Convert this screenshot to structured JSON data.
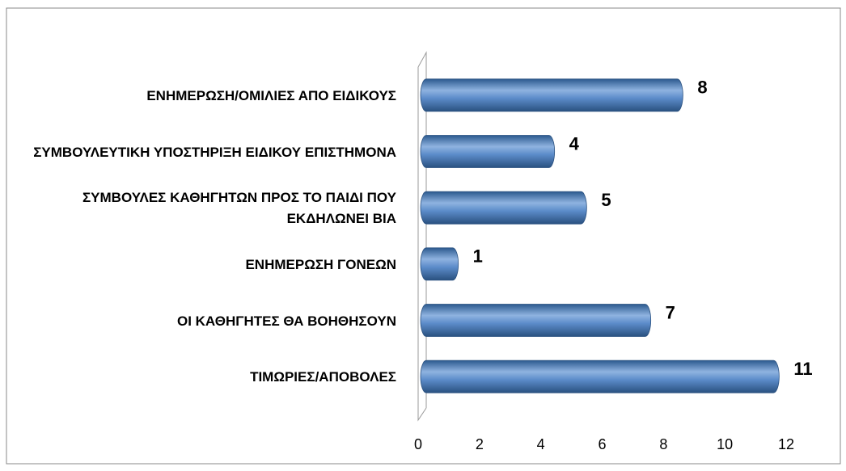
{
  "chart_data": {
    "type": "bar",
    "orientation": "horizontal",
    "categories": [
      "ΕΝΗΜΕΡΩΣΗ/ΟΜΙΛΙΕΣ ΑΠΟ ΕΙΔΙΚΟΥΣ",
      "ΣΥΜΒΟΥΛΕΥΤΙΚΗ ΥΠΟΣΤΗΡΙΞΗ ΕΙΔΙΚΟΥ ΕΠΙΣΤΗΜΟΝΑ",
      "ΣΥΜΒΟΥΛΕΣ ΚΑΘΗΓΗΤΩΝ ΠΡΟΣ ΤΟ ΠΑΙΔΙ ΠΟΥ ΕΚΔΗΛΩΝΕΙ ΒΙΑ",
      "ΕΝΗΜΕΡΩΣΗ ΓΟΝΕΩΝ",
      "ΟΙ ΚΑΘΗΓΗΤΕΣ ΘΑ ΒΟΗΘΗΣΟΥΝ",
      "ΤΙΜΩΡΙΕΣ/ΑΠΟΒΟΛΕΣ"
    ],
    "values": [
      8,
      4,
      5,
      1,
      7,
      11
    ],
    "color": "#4f81bd",
    "xlim": [
      0,
      12
    ],
    "xticks": [
      0,
      2,
      4,
      6,
      8,
      10,
      12
    ],
    "grid": false
  }
}
